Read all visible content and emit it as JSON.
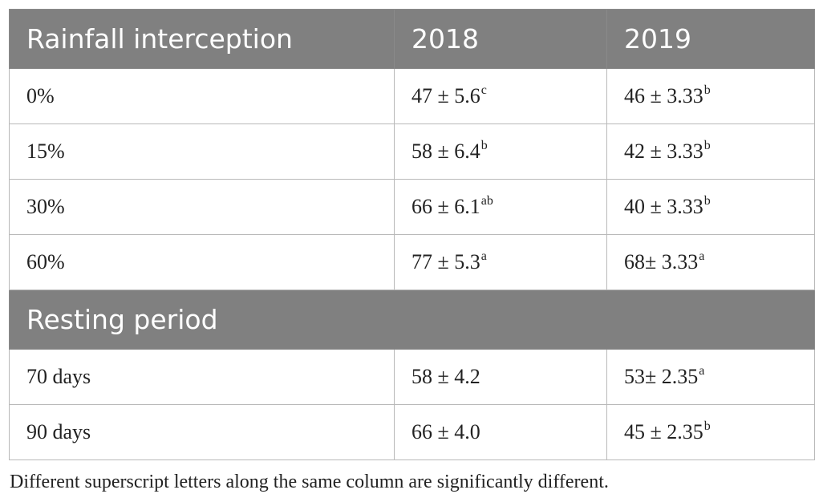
{
  "header": {
    "col1": "Rainfall interception",
    "col2": "2018",
    "col3": "2019"
  },
  "rainfall_rows": [
    {
      "label": "0%",
      "v2018": "47 ± 5.6",
      "s2018": "c",
      "v2019": "46 ± 3.33",
      "s2019": "b"
    },
    {
      "label": "15%",
      "v2018": "58 ± 6.4",
      "s2018": "b",
      "v2019": "42 ± 3.33",
      "s2019": "b"
    },
    {
      "label": "30%",
      "v2018": "66 ± 6.1",
      "s2018": "ab",
      "v2019": "40 ± 3.33",
      "s2019": "b"
    },
    {
      "label": "60%",
      "v2018": "77 ± 5.3",
      "s2018": "a",
      "v2019": "68± 3.33",
      "s2019": "a"
    }
  ],
  "section2": {
    "title": "Resting period"
  },
  "resting_rows": [
    {
      "label": "70 days",
      "v2018": "58 ± 4.2",
      "s2018": "",
      "v2019": "53± 2.35",
      "s2019": "a"
    },
    {
      "label": "90 days",
      "v2018": "66 ± 4.0",
      "s2018": "",
      "v2019": "45 ± 2.35",
      "s2019": "b"
    }
  ],
  "footnote": "Different superscript letters along the same column are significantly different."
}
